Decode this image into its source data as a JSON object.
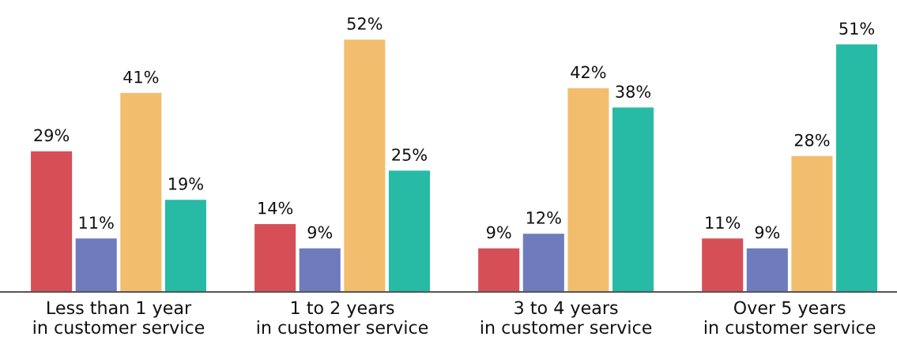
{
  "chart_data": {
    "type": "bar",
    "categories": [
      "Less than 1 year\nin customer service",
      "1 to 2 years\nin customer service",
      "3 to 4 years\nin customer service",
      "Over 5 years\nin customer service"
    ],
    "series": [
      {
        "color": "#d64f57",
        "values": [
          29,
          14,
          9,
          11
        ],
        "value_labels": [
          "29%",
          "14%",
          "9%",
          "11%"
        ]
      },
      {
        "color": "#6f7bbd",
        "values": [
          11,
          9,
          12,
          9
        ],
        "value_labels": [
          "11%",
          "9%",
          "12%",
          "9%"
        ]
      },
      {
        "color": "#f2be6e",
        "values": [
          41,
          52,
          42,
          28
        ],
        "value_labels": [
          "41%",
          "52%",
          "42%",
          "28%"
        ]
      },
      {
        "color": "#27bba6",
        "values": [
          19,
          25,
          38,
          51
        ],
        "value_labels": [
          "19%",
          "25%",
          "38%",
          "51%"
        ]
      }
    ],
    "grid": false,
    "legend": false
  }
}
